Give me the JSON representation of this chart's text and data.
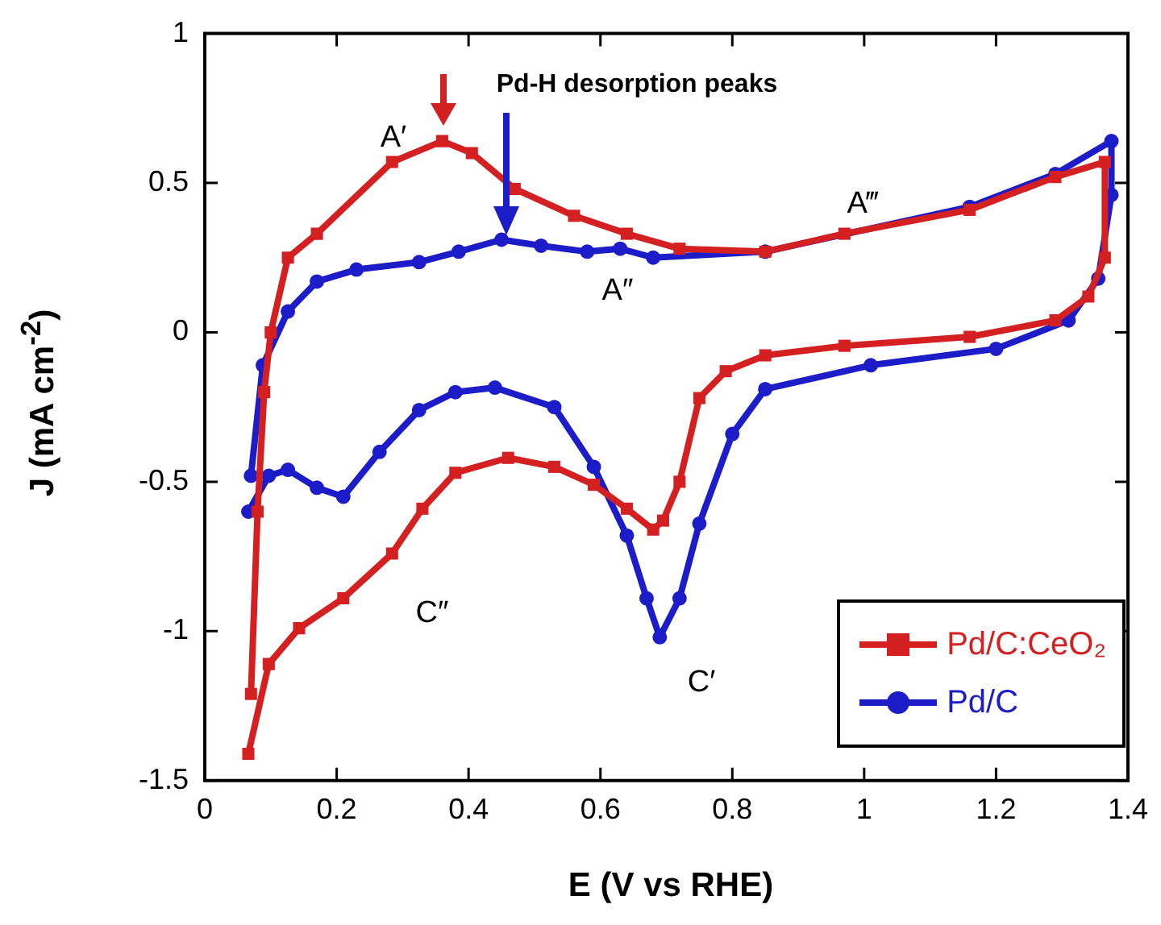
{
  "chart_data": {
    "type": "line",
    "xlabel": "E (V vs RHE)",
    "ylabel": "J (mA cm$^{-2}$)",
    "xlim": [
      0,
      1.4
    ],
    "xticks": [
      0,
      0.2,
      0.4,
      0.6,
      0.8,
      1,
      1.2,
      1.4
    ],
    "ylim": [
      -1.5,
      1
    ],
    "yticks": [
      -1.5,
      -1,
      -0.5,
      0,
      0.5,
      1
    ],
    "legend": "bottom right",
    "line_style": "solid",
    "series": [
      {
        "name": "Pd/C:CeO₂",
        "color": "#d42020",
        "marker": "square",
        "x": [
          0.066,
          0.097,
          0.143,
          0.21,
          0.284,
          0.33,
          0.38,
          0.46,
          0.53,
          0.59,
          0.64,
          0.68,
          0.695,
          0.72,
          0.75,
          0.79,
          0.85,
          0.97,
          1.16,
          1.29,
          1.34,
          1.365,
          1.365,
          1.29,
          1.16,
          0.97,
          0.85,
          0.72,
          0.64,
          0.56,
          0.47,
          0.405,
          0.36,
          0.284,
          0.17,
          0.126,
          0.1,
          0.09,
          0.08,
          0.07
        ],
        "values": [
          -1.41,
          -1.11,
          -0.99,
          -0.89,
          -0.74,
          -0.59,
          -0.47,
          -0.42,
          -0.45,
          -0.51,
          -0.59,
          -0.66,
          -0.63,
          -0.5,
          -0.22,
          -0.13,
          -0.077,
          -0.045,
          -0.015,
          0.04,
          0.12,
          0.25,
          0.57,
          0.52,
          0.41,
          0.33,
          0.27,
          0.28,
          0.33,
          0.39,
          0.48,
          0.6,
          0.64,
          0.57,
          0.33,
          0.25,
          0,
          -0.2,
          -0.6,
          -1.21
        ]
      },
      {
        "name": "Pd/C",
        "color": "#1c1cc8",
        "marker": "circle",
        "x": [
          0.066,
          0.097,
          0.126,
          0.17,
          0.21,
          0.265,
          0.325,
          0.38,
          0.44,
          0.53,
          0.59,
          0.64,
          0.67,
          0.69,
          0.72,
          0.75,
          0.8,
          0.85,
          1.01,
          1.2,
          1.31,
          1.355,
          1.375,
          1.375,
          1.29,
          1.16,
          0.85,
          0.68,
          0.63,
          0.58,
          0.51,
          0.45,
          0.385,
          0.325,
          0.23,
          0.17,
          0.126,
          0.088,
          0.07
        ],
        "values": [
          -0.6,
          -0.48,
          -0.46,
          -0.52,
          -0.55,
          -0.4,
          -0.26,
          -0.2,
          -0.185,
          -0.25,
          -0.45,
          -0.68,
          -0.89,
          -1.02,
          -0.89,
          -0.64,
          -0.34,
          -0.19,
          -0.11,
          -0.055,
          0.04,
          0.18,
          0.46,
          0.64,
          0.53,
          0.42,
          0.27,
          0.25,
          0.28,
          0.27,
          0.29,
          0.31,
          0.27,
          0.235,
          0.21,
          0.17,
          0.07,
          -0.11,
          -0.48
        ]
      }
    ],
    "annotations": [
      "Pd-H desorption peaks",
      "A′",
      "A″",
      "A‴",
      "C″",
      "C′"
    ]
  }
}
